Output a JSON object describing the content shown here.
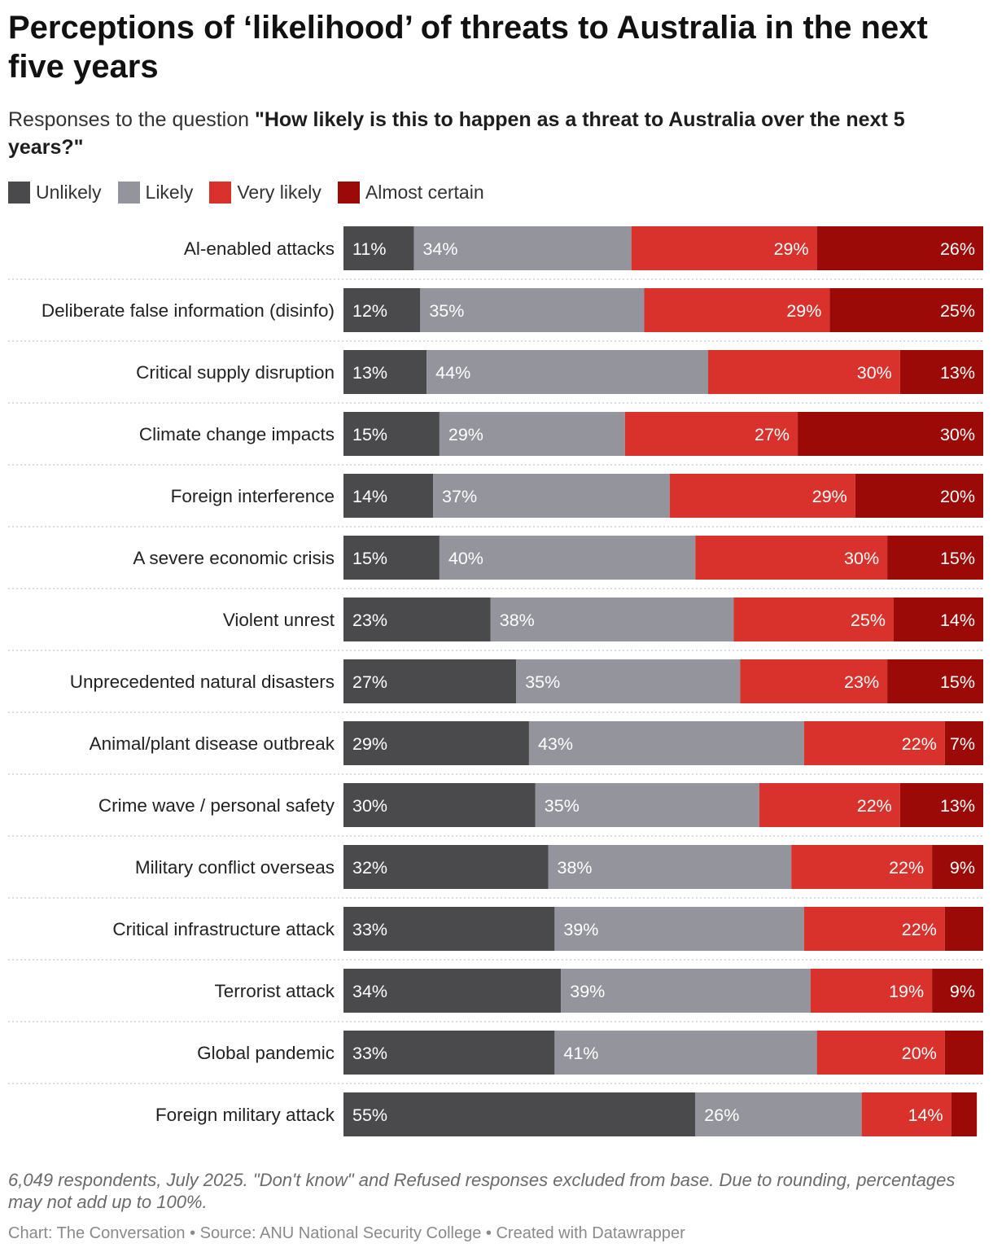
{
  "header": {
    "title": "Perceptions of ‘likelihood’ of threats to Australia in the next five years",
    "subtitle_prefix": "Responses to the question ",
    "subtitle_bold": "\"How likely is this to happen as a threat to Australia over the next 5 years?\""
  },
  "legend": [
    {
      "label": "Unlikely",
      "color": "#4a4a4d"
    },
    {
      "label": "Likely",
      "color": "#94949d"
    },
    {
      "label": "Very likely",
      "color": "#d9312b"
    },
    {
      "label": "Almost certain",
      "color": "#9b0a07"
    }
  ],
  "chart_data": {
    "type": "bar",
    "orientation": "horizontal",
    "stacked": true,
    "value_unit": "%",
    "categories": [
      "Al-enabled attacks",
      "Deliberate false information (disinfo)",
      "Critical supply disruption",
      "Climate change impacts",
      "Foreign interference",
      "A severe economic crisis",
      "Violent unrest",
      "Unprecedented natural disasters",
      "Animal/plant disease outbreak",
      "Crime wave / personal safety",
      "Military conflict overseas",
      "Critical infrastructure attack",
      "Terrorist attack",
      "Global pandemic",
      "Foreign military attack"
    ],
    "series": [
      {
        "name": "Unlikely",
        "color": "#4a4a4d",
        "label_color": "#ffffff",
        "values": [
          11,
          12,
          13,
          15,
          14,
          15,
          23,
          27,
          29,
          30,
          32,
          33,
          34,
          33,
          55
        ]
      },
      {
        "name": "Likely",
        "color": "#94949d",
        "label_color": "#ffffff",
        "values": [
          34,
          35,
          44,
          29,
          37,
          40,
          38,
          35,
          43,
          35,
          38,
          39,
          39,
          41,
          26
        ]
      },
      {
        "name": "Very likely",
        "color": "#d9312b",
        "label_color": "#ffffff",
        "values": [
          29,
          29,
          30,
          27,
          29,
          30,
          25,
          23,
          22,
          22,
          22,
          22,
          19,
          20,
          14
        ]
      },
      {
        "name": "Almost certain",
        "color": "#9b0a07",
        "label_color": "#ffffff",
        "values": [
          26,
          25,
          13,
          30,
          20,
          15,
          14,
          15,
          7,
          13,
          9,
          6,
          9,
          6,
          4
        ],
        "labels_shown": [
          true,
          true,
          true,
          true,
          true,
          true,
          true,
          true,
          true,
          true,
          true,
          false,
          true,
          false,
          false
        ]
      }
    ],
    "xlim": [
      0,
      100
    ],
    "grid": false,
    "legend_position": "top-left"
  },
  "footer": {
    "notes": "6,049 respondents, July 2025. \"Don't know\" and Refused responses excluded from base. Due to rounding, percentages may not add up to 100%.",
    "credits": "Chart: The Conversation • Source: ANU National Security College • Created with Datawrapper"
  }
}
